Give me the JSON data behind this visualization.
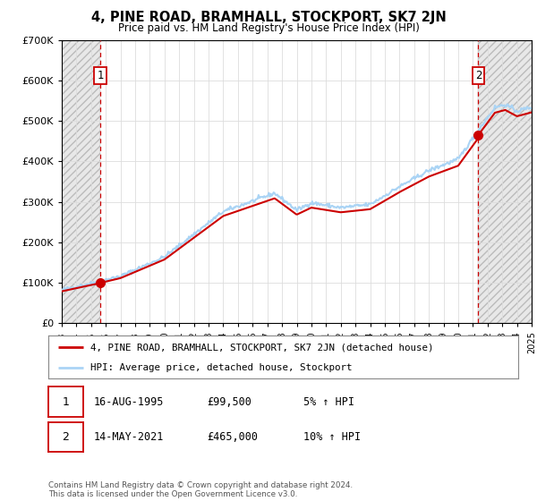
{
  "title": "4, PINE ROAD, BRAMHALL, STOCKPORT, SK7 2JN",
  "subtitle": "Price paid vs. HM Land Registry's House Price Index (HPI)",
  "xmin_year": 1993,
  "xmax_year": 2025,
  "ymin": 0,
  "ymax": 700000,
  "yticks": [
    0,
    100000,
    200000,
    300000,
    400000,
    500000,
    600000,
    700000
  ],
  "ytick_labels": [
    "£0",
    "£100K",
    "£200K",
    "£300K",
    "£400K",
    "£500K",
    "£600K",
    "£700K"
  ],
  "hpi_color": "#aad4f5",
  "price_color": "#cc0000",
  "point1_x": 1995.625,
  "point1_y": 99500,
  "point2_x": 2021.37,
  "point2_y": 465000,
  "point1_label": "1",
  "point2_label": "2",
  "legend_line1": "4, PINE ROAD, BRAMHALL, STOCKPORT, SK7 2JN (detached house)",
  "legend_line2": "HPI: Average price, detached house, Stockport",
  "table_row1": [
    "1",
    "16-AUG-1995",
    "£99,500",
    "5% ↑ HPI"
  ],
  "table_row2": [
    "2",
    "14-MAY-2021",
    "£465,000",
    "10% ↑ HPI"
  ],
  "footnote": "Contains HM Land Registry data © Crown copyright and database right 2024.\nThis data is licensed under the Open Government Licence v3.0.",
  "background_color": "#ffffff",
  "grid_color": "#dddddd",
  "xtick_years": [
    1993,
    1994,
    1995,
    1996,
    1997,
    1998,
    1999,
    2000,
    2001,
    2002,
    2003,
    2004,
    2005,
    2006,
    2007,
    2008,
    2009,
    2010,
    2011,
    2012,
    2013,
    2014,
    2015,
    2016,
    2017,
    2018,
    2019,
    2020,
    2021,
    2022,
    2023,
    2024,
    2025
  ]
}
